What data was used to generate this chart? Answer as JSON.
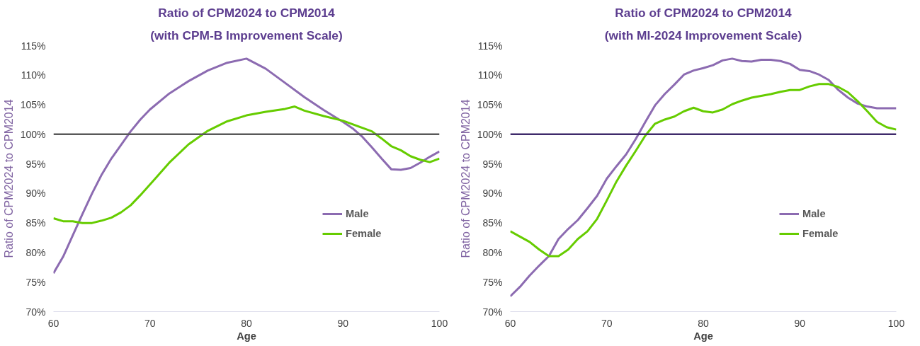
{
  "chart_data": [
    {
      "type": "line",
      "title": "Ratio of CPM2024 to CPM2014",
      "subtitle": "(with CPM-B Improvement Scale)",
      "xlabel": "Age",
      "ylabel": "Ratio of CPM2024 to CPM2014",
      "xlim": [
        60,
        100
      ],
      "xticks": [
        60,
        70,
        80,
        90,
        100
      ],
      "ylim": [
        70,
        115
      ],
      "yticks": [
        {
          "value": 70,
          "label": "70%"
        },
        {
          "value": 75,
          "label": "75%"
        },
        {
          "value": 80,
          "label": "80%"
        },
        {
          "value": 85,
          "label": "85%"
        },
        {
          "value": 90,
          "label": "90%"
        },
        {
          "value": 95,
          "label": "95%"
        },
        {
          "value": 100,
          "label": "100%"
        },
        {
          "value": 105,
          "label": "105%"
        },
        {
          "value": 110,
          "label": "110%"
        },
        {
          "value": 115,
          "label": "115%"
        }
      ],
      "grid": false,
      "legend": "right",
      "marker": "none",
      "line_style": "solid",
      "ref_lines": [
        {
          "axis": "y",
          "value": 100,
          "color": "#595959"
        }
      ],
      "series": [
        {
          "name": "Male",
          "color": "#8c6bb1",
          "x": [
            60,
            61,
            62,
            63,
            64,
            65,
            66,
            67,
            68,
            69,
            70,
            72,
            74,
            76,
            78,
            80,
            82,
            84,
            86,
            88,
            90,
            91,
            92,
            93,
            94,
            95,
            96,
            97,
            98,
            99,
            100
          ],
          "values": [
            76.5,
            79.3,
            82.9,
            86.5,
            90,
            93.2,
            95.9,
            98.2,
            100.5,
            102.5,
            104.2,
            106.9,
            109.0,
            110.8,
            112.1,
            112.8,
            111.1,
            108.7,
            106.3,
            104.1,
            102.1,
            101,
            99.6,
            97.8,
            95.9,
            94.1,
            94.0,
            94.3,
            95.2,
            96.2,
            97.1
          ]
        },
        {
          "name": "Female",
          "color": "#66cc00",
          "x": [
            60,
            61,
            62,
            63,
            64,
            65,
            66,
            67,
            68,
            69,
            70,
            72,
            74,
            76,
            78,
            80,
            82,
            84,
            85,
            86,
            88,
            90,
            92,
            93,
            94,
            95,
            96,
            97,
            98,
            99,
            100
          ],
          "values": [
            85.8,
            85.3,
            85.3,
            85.0,
            85.0,
            85.4,
            85.9,
            86.8,
            88.0,
            89.7,
            91.5,
            95.2,
            98.3,
            100.6,
            102.2,
            103.2,
            103.8,
            104.3,
            104.7,
            104.0,
            103.1,
            102.3,
            101.1,
            100.5,
            99.3,
            98.0,
            97.3,
            96.3,
            95.7,
            95.3,
            95.9
          ]
        }
      ]
    },
    {
      "type": "line",
      "title": "Ratio of CPM2024 to CPM2014",
      "subtitle": "(with MI-2024 Improvement Scale)",
      "xlabel": "Age",
      "ylabel": "Ratio of CPM2024 to CPM2014",
      "xlim": [
        60,
        100
      ],
      "xticks": [
        60,
        70,
        80,
        90,
        100
      ],
      "ylim": [
        70,
        115
      ],
      "yticks": [
        {
          "value": 70,
          "label": "70%"
        },
        {
          "value": 75,
          "label": "75%"
        },
        {
          "value": 80,
          "label": "80%"
        },
        {
          "value": 85,
          "label": "85%"
        },
        {
          "value": 90,
          "label": "90%"
        },
        {
          "value": 95,
          "label": "95%"
        },
        {
          "value": 100,
          "label": "100%"
        },
        {
          "value": 105,
          "label": "105%"
        },
        {
          "value": 110,
          "label": "110%"
        },
        {
          "value": 115,
          "label": "115%"
        }
      ],
      "grid": false,
      "legend": "right",
      "marker": "none",
      "line_style": "solid",
      "ref_lines": [
        {
          "axis": "y",
          "value": 100,
          "color": "#3f2a6b"
        }
      ],
      "series": [
        {
          "name": "Male",
          "color": "#8c6bb1",
          "x": [
            60,
            61,
            62,
            63,
            64,
            65,
            66,
            67,
            68,
            69,
            70,
            71,
            72,
            73,
            74,
            75,
            76,
            77,
            78,
            79,
            80,
            81,
            82,
            83,
            84,
            85,
            86,
            87,
            88,
            89,
            90,
            91,
            92,
            93,
            94,
            95,
            96,
            97,
            98,
            99,
            100
          ],
          "values": [
            72.6,
            74.2,
            76.1,
            77.8,
            79.4,
            82.3,
            84.0,
            85.5,
            87.5,
            89.6,
            92.5,
            94.6,
            96.6,
            99.2,
            102.1,
            104.9,
            106.8,
            108.4,
            110.1,
            110.8,
            111.2,
            111.7,
            112.5,
            112.8,
            112.4,
            112.3,
            112.6,
            112.6,
            112.4,
            111.9,
            110.9,
            110.7,
            110.1,
            109.2,
            107.5,
            106.2,
            105.2,
            104.7,
            104.4,
            104.4,
            104.4
          ]
        },
        {
          "name": "Female",
          "color": "#66cc00",
          "x": [
            60,
            61,
            62,
            63,
            64,
            65,
            66,
            67,
            68,
            69,
            70,
            71,
            72,
            73,
            74,
            75,
            76,
            77,
            78,
            79,
            80,
            81,
            82,
            83,
            84,
            85,
            86,
            87,
            88,
            89,
            90,
            91,
            92,
            93,
            94,
            95,
            96,
            97,
            98,
            99,
            100
          ],
          "values": [
            83.6,
            82.7,
            81.8,
            80.5,
            79.4,
            79.4,
            80.5,
            82.3,
            83.6,
            85.7,
            88.8,
            92.0,
            94.7,
            97.2,
            99.8,
            101.8,
            102.5,
            103.0,
            103.9,
            104.5,
            103.9,
            103.7,
            104.2,
            105.1,
            105.7,
            106.2,
            106.5,
            106.8,
            107.2,
            107.5,
            107.5,
            108.1,
            108.5,
            108.5,
            108.0,
            107.1,
            105.6,
            103.9,
            102.1,
            101.2,
            100.8
          ]
        }
      ]
    }
  ]
}
